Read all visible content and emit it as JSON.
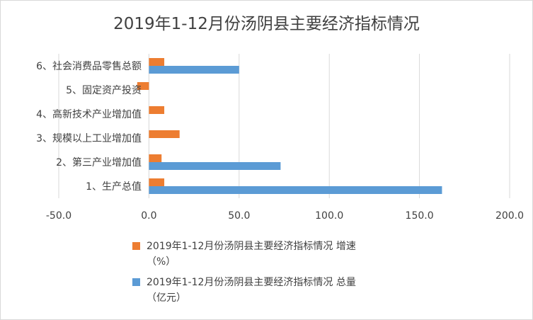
{
  "chart_data": {
    "type": "bar",
    "orientation": "horizontal",
    "title": "2019年1-12月份汤阴县主要经济指标情况",
    "categories": [
      "1、生产总值",
      "2、第三产业增加值",
      "3、规模以上工业增加值",
      "4、高新技术产业增加值",
      "5、固定资产投资",
      "6、社会消费品零售总额"
    ],
    "series": [
      {
        "name": "2019年1-12月份汤阴县主要经济指标情况 增速（%）",
        "legend_lines": [
          "2019年1-12月份汤阴县主要经济指标情况 增速",
          "（%）"
        ],
        "color": "#ed7d31",
        "values": [
          8.5,
          7.0,
          17.0,
          8.5,
          -6.5,
          8.5
        ]
      },
      {
        "name": "2019年1-12月份汤阴县主要经济指标情况 总量（亿元）",
        "legend_lines": [
          "2019年1-12月份汤阴县主要经济指标情况 总量",
          "（亿元）"
        ],
        "color": "#5b9bd5",
        "values": [
          162.5,
          73.0,
          null,
          null,
          null,
          50.0
        ]
      }
    ],
    "xlim": [
      -50,
      200
    ],
    "xticks": [
      "-50.0",
      "0.0",
      "50.0",
      "100.0",
      "150.0",
      "200.0"
    ],
    "grid": true,
    "gridline_color": "#d9d9d9",
    "legend_position": "bottom"
  }
}
